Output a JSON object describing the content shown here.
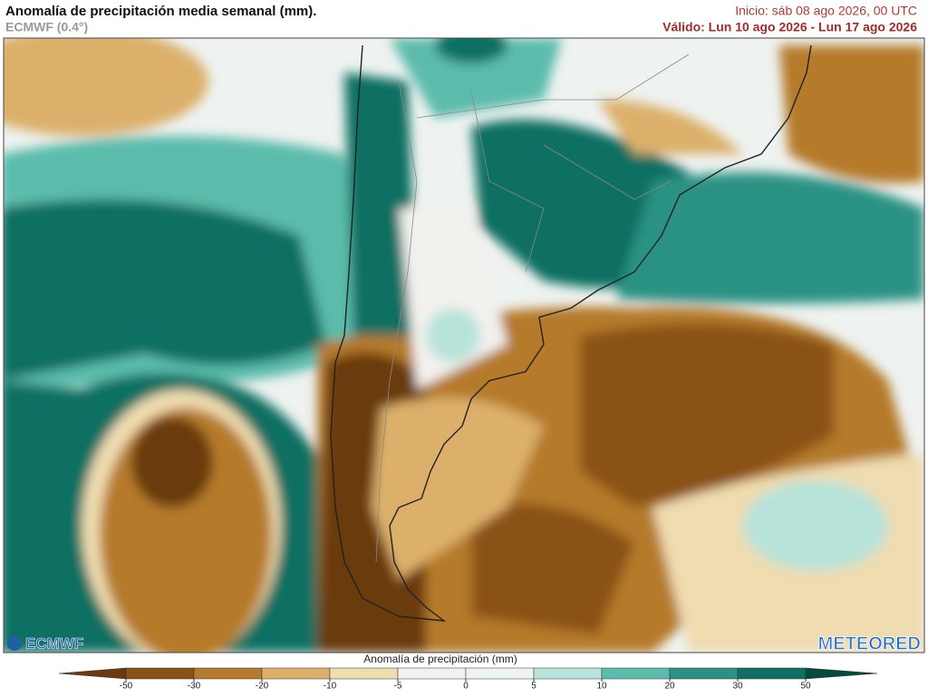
{
  "header": {
    "title": "Anomalía de precipitación media semanal (mm).",
    "model": "ECMWF (0.4°)",
    "init": "Inicio:  sáb 08 ago 2026, 00 UTC",
    "valid": "Válido: Lun 10 ago 2026 - Lun 17 ago 2026"
  },
  "logos": {
    "left": "ECMWF",
    "right": "METEORED"
  },
  "colorbar": {
    "label": "Anomalía de precipitación (mm)",
    "ticks": [
      -50,
      -30,
      -20,
      -10,
      -5,
      0,
      5,
      10,
      20,
      30,
      50
    ],
    "colors": [
      "#6b3a10",
      "#8a5214",
      "#b57a2c",
      "#dcb06a",
      "#efdcb0",
      "#f3f1ee",
      "#eef4f3",
      "#b8e3da",
      "#5cbcac",
      "#2a9284",
      "#0e6f62",
      "#044a3e"
    ]
  }
}
